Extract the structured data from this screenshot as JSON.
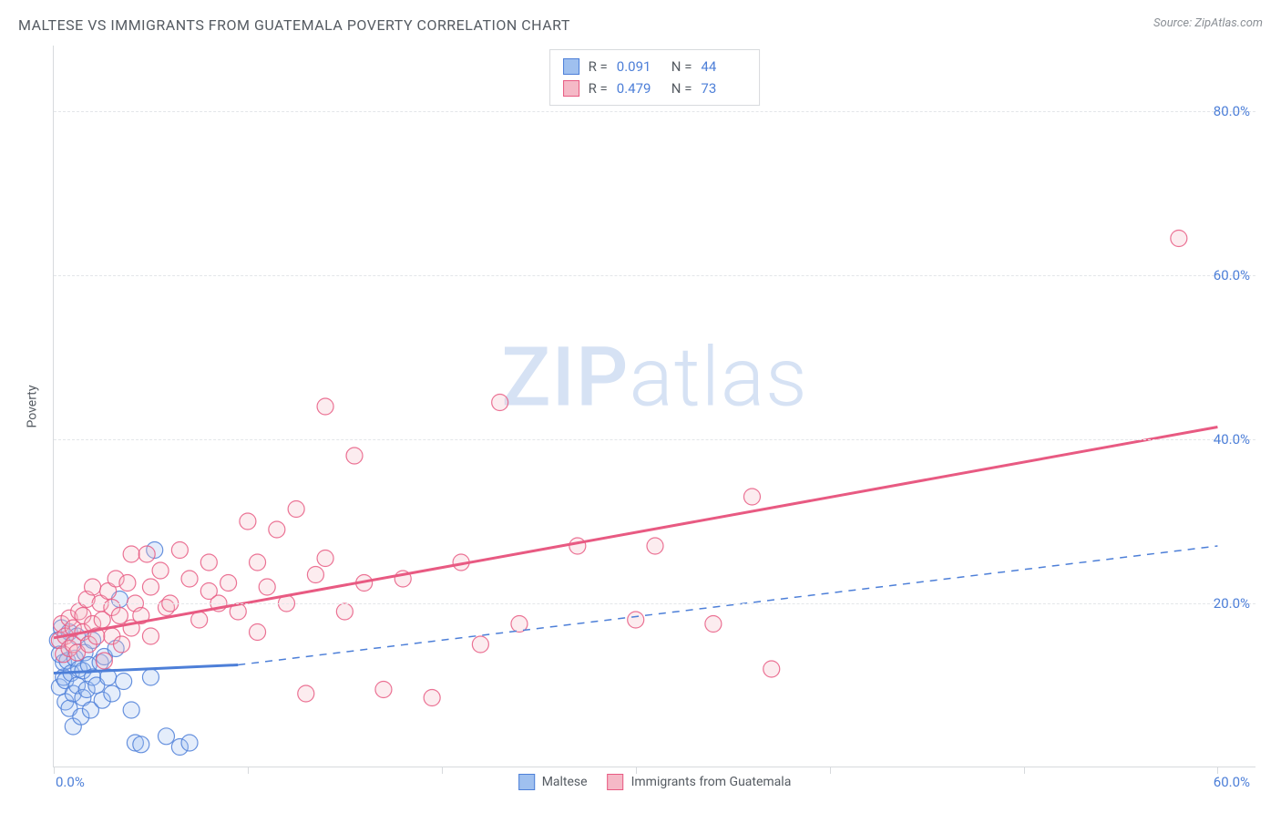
{
  "title": "MALTESE VS IMMIGRANTS FROM GUATEMALA POVERTY CORRELATION CHART",
  "source": "Source: ZipAtlas.com",
  "ylabel": "Poverty",
  "watermark_a": "ZIP",
  "watermark_b": "atlas",
  "chart": {
    "type": "scatter",
    "xlim": [
      0,
      62
    ],
    "ylim": [
      0,
      88
    ],
    "xtick_positions": [
      0,
      10,
      20,
      30,
      40,
      50,
      60
    ],
    "xtick_label_left": "0.0%",
    "xtick_label_right": "60.0%",
    "yticks": [
      {
        "v": 20,
        "label": "20.0%"
      },
      {
        "v": 40,
        "label": "40.0%"
      },
      {
        "v": 60,
        "label": "60.0%"
      },
      {
        "v": 80,
        "label": "80.0%"
      }
    ],
    "grid_color": "#e3e6e9",
    "axis_color": "#d7dadd",
    "tick_label_color": "#4d7fd8",
    "background_color": "#ffffff",
    "marker_radius": 9,
    "series": [
      {
        "name": "Maltese",
        "R": "0.091",
        "N": "44",
        "color_fill": "#9fc0ef",
        "color_stroke": "#4d7fd8",
        "trend": {
          "x1": 0,
          "y1": 11.5,
          "x2": 9.5,
          "y2": 12.5,
          "solid_until_x": 9.5,
          "dashed_to_x": 60,
          "dashed_to_y": 27
        },
        "points": [
          [
            0.2,
            15.5
          ],
          [
            0.3,
            13.8
          ],
          [
            0.3,
            9.8
          ],
          [
            0.4,
            17.0
          ],
          [
            0.5,
            11.0
          ],
          [
            0.5,
            12.8
          ],
          [
            0.6,
            8.0
          ],
          [
            0.6,
            10.6
          ],
          [
            0.7,
            13.0
          ],
          [
            0.8,
            16.5
          ],
          [
            0.8,
            7.2
          ],
          [
            0.9,
            11.5
          ],
          [
            1.0,
            5.0
          ],
          [
            1.0,
            9.0
          ],
          [
            1.1,
            13.3
          ],
          [
            1.2,
            16.0
          ],
          [
            1.2,
            10.0
          ],
          [
            1.3,
            12.0
          ],
          [
            1.4,
            6.2
          ],
          [
            1.5,
            11.8
          ],
          [
            1.5,
            8.5
          ],
          [
            1.6,
            14.0
          ],
          [
            1.7,
            9.5
          ],
          [
            1.8,
            12.5
          ],
          [
            1.9,
            7.0
          ],
          [
            2.0,
            11.0
          ],
          [
            2.0,
            15.5
          ],
          [
            2.2,
            10.0
          ],
          [
            2.4,
            12.8
          ],
          [
            2.5,
            8.2
          ],
          [
            2.6,
            13.5
          ],
          [
            2.8,
            11.0
          ],
          [
            3.0,
            9.0
          ],
          [
            3.2,
            14.5
          ],
          [
            3.4,
            20.5
          ],
          [
            3.6,
            10.5
          ],
          [
            4.0,
            7.0
          ],
          [
            4.2,
            3.0
          ],
          [
            4.5,
            2.8
          ],
          [
            5.0,
            11.0
          ],
          [
            5.2,
            26.5
          ],
          [
            5.8,
            3.8
          ],
          [
            6.5,
            2.5
          ],
          [
            7.0,
            3.0
          ]
        ]
      },
      {
        "name": "Immigrants from Guatemala",
        "R": "0.479",
        "N": "73",
        "color_fill": "#f5b9c7",
        "color_stroke": "#e85a82",
        "trend": {
          "x1": 0,
          "y1": 15.8,
          "x2": 60,
          "y2": 41.5
        },
        "points": [
          [
            0.3,
            15.5
          ],
          [
            0.4,
            17.5
          ],
          [
            0.5,
            13.8
          ],
          [
            0.6,
            16.0
          ],
          [
            0.8,
            18.2
          ],
          [
            0.8,
            14.5
          ],
          [
            1.0,
            17.0
          ],
          [
            1.0,
            15.0
          ],
          [
            1.2,
            14.0
          ],
          [
            1.3,
            19.0
          ],
          [
            1.5,
            16.5
          ],
          [
            1.5,
            18.5
          ],
          [
            1.7,
            20.5
          ],
          [
            1.8,
            15.0
          ],
          [
            2.0,
            22.0
          ],
          [
            2.0,
            17.5
          ],
          [
            2.2,
            16.0
          ],
          [
            2.4,
            20.0
          ],
          [
            2.5,
            18.0
          ],
          [
            2.6,
            13.0
          ],
          [
            2.8,
            21.5
          ],
          [
            3.0,
            19.5
          ],
          [
            3.0,
            16.0
          ],
          [
            3.2,
            23.0
          ],
          [
            3.4,
            18.5
          ],
          [
            3.5,
            15.0
          ],
          [
            3.8,
            22.5
          ],
          [
            4.0,
            17.0
          ],
          [
            4.0,
            26.0
          ],
          [
            4.2,
            20.0
          ],
          [
            4.5,
            18.5
          ],
          [
            4.8,
            26.0
          ],
          [
            5.0,
            22.0
          ],
          [
            5.0,
            16.0
          ],
          [
            5.5,
            24.0
          ],
          [
            5.8,
            19.5
          ],
          [
            6.0,
            20.0
          ],
          [
            6.5,
            26.5
          ],
          [
            7.0,
            23.0
          ],
          [
            7.5,
            18.0
          ],
          [
            8.0,
            25.0
          ],
          [
            8.0,
            21.5
          ],
          [
            8.5,
            20.0
          ],
          [
            9.0,
            22.5
          ],
          [
            9.5,
            19.0
          ],
          [
            10.0,
            30.0
          ],
          [
            10.5,
            25.0
          ],
          [
            10.5,
            16.5
          ],
          [
            11.0,
            22.0
          ],
          [
            11.5,
            29.0
          ],
          [
            12.0,
            20.0
          ],
          [
            12.5,
            31.5
          ],
          [
            13.0,
            9.0
          ],
          [
            13.5,
            23.5
          ],
          [
            14.0,
            25.5
          ],
          [
            14.0,
            44.0
          ],
          [
            15.0,
            19.0
          ],
          [
            15.5,
            38.0
          ],
          [
            16.0,
            22.5
          ],
          [
            17.0,
            9.5
          ],
          [
            18.0,
            23.0
          ],
          [
            19.5,
            8.5
          ],
          [
            21.0,
            25.0
          ],
          [
            22.0,
            15.0
          ],
          [
            23.0,
            44.5
          ],
          [
            24.0,
            17.5
          ],
          [
            27.0,
            27.0
          ],
          [
            30.0,
            18.0
          ],
          [
            31.0,
            27.0
          ],
          [
            34.0,
            17.5
          ],
          [
            36.0,
            33.0
          ],
          [
            37.0,
            12.0
          ],
          [
            58.0,
            64.5
          ]
        ]
      }
    ]
  },
  "legend_bottom": [
    {
      "label": "Maltese",
      "fill": "#9fc0ef",
      "stroke": "#4d7fd8"
    },
    {
      "label": "Immigrants from Guatemala",
      "fill": "#f5b9c7",
      "stroke": "#e85a82"
    }
  ]
}
